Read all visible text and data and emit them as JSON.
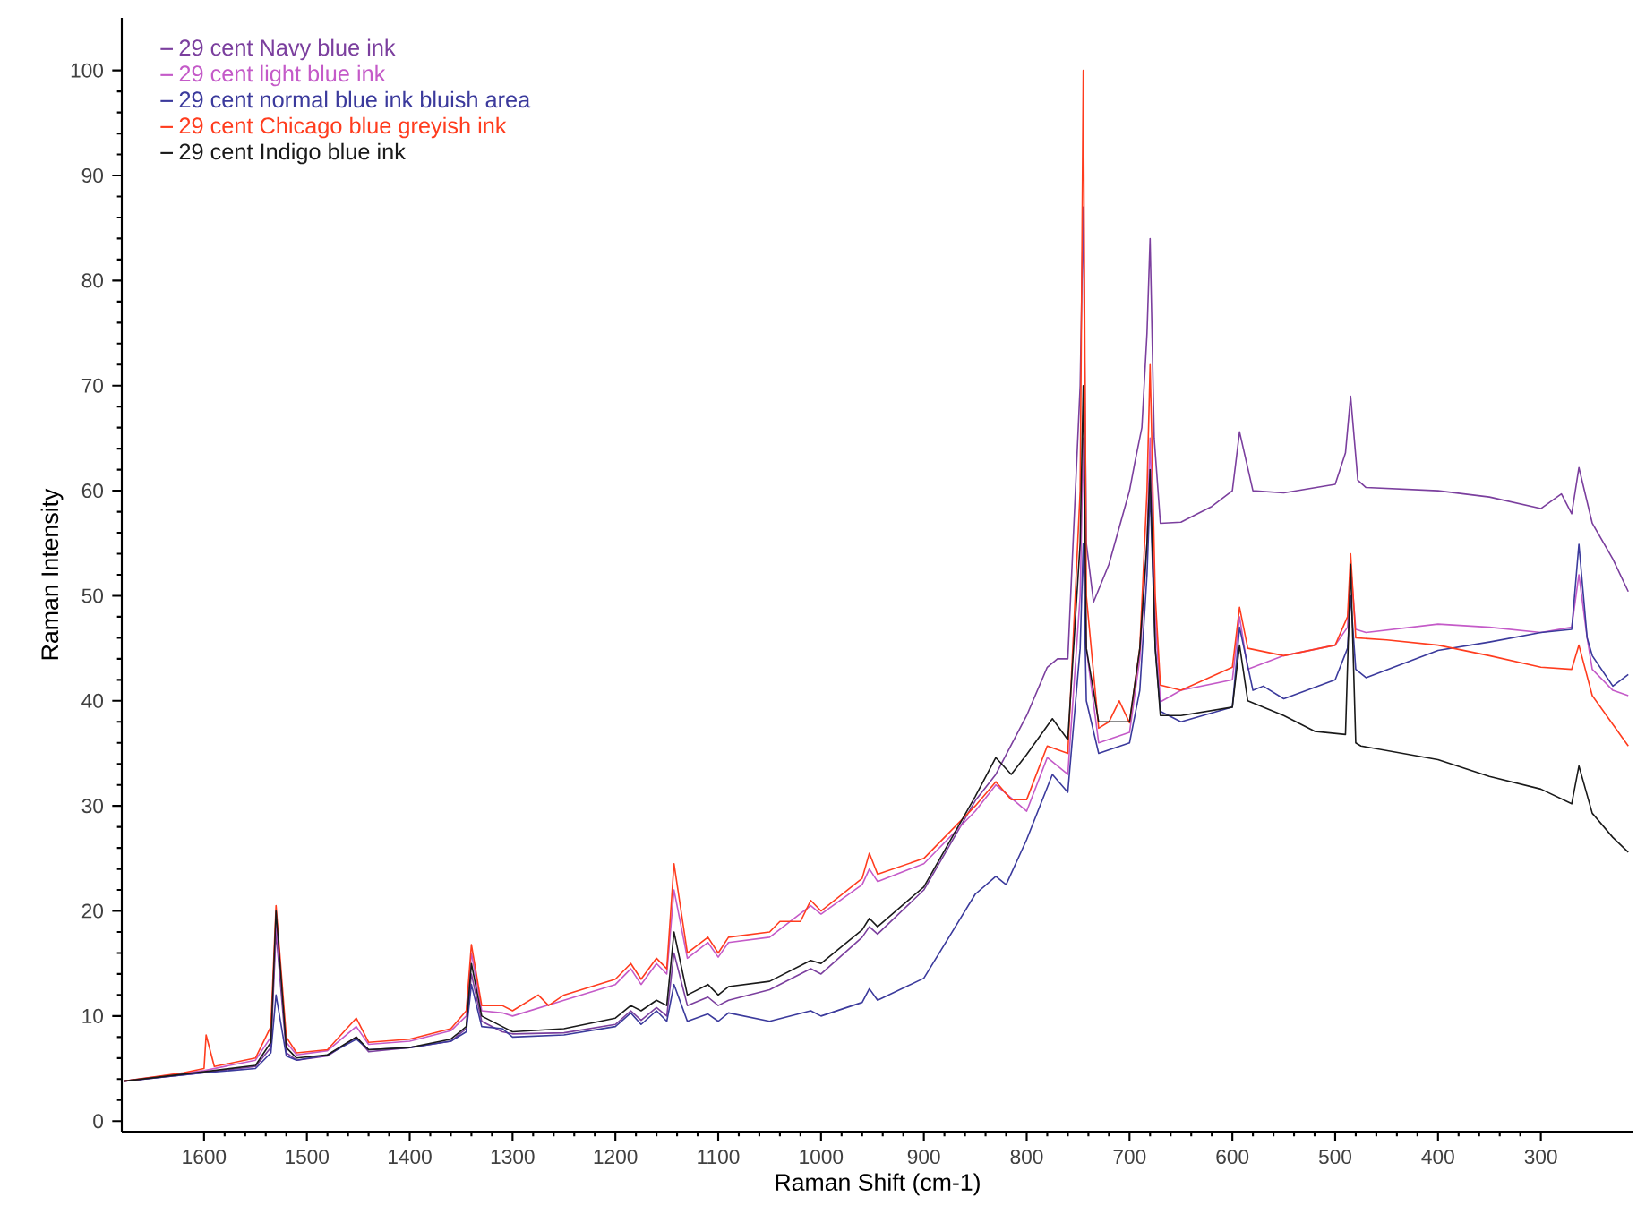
{
  "chart_data": {
    "type": "line",
    "xlabel": "Raman Shift (cm-1)",
    "ylabel": "Raman Intensity",
    "xlim": [
      1680,
      210
    ],
    "ylim": [
      -1,
      105
    ],
    "xticks": [
      1600,
      1500,
      1400,
      1300,
      1200,
      1100,
      1000,
      900,
      800,
      700,
      600,
      500,
      400,
      300
    ],
    "yticks": [
      0,
      10,
      20,
      30,
      40,
      50,
      60,
      70,
      80,
      90,
      100
    ],
    "grid": false,
    "legend": "top left",
    "marker": "none",
    "line_style": "solid",
    "series": [
      {
        "name": "29 cent Navy blue ink",
        "color": "#7b3f9e",
        "x": [
          1678,
          1600,
          1550,
          1535,
          1530,
          1520,
          1510,
          1480,
          1452,
          1440,
          1400,
          1360,
          1345,
          1340,
          1330,
          1310,
          1300,
          1250,
          1200,
          1185,
          1175,
          1160,
          1150,
          1143,
          1130,
          1110,
          1100,
          1090,
          1050,
          1010,
          1000,
          960,
          953,
          945,
          900,
          850,
          830,
          800,
          780,
          770,
          760,
          748,
          745,
          742,
          735,
          720,
          700,
          695,
          688,
          683,
          680,
          676,
          670,
          650,
          620,
          600,
          593,
          580,
          550,
          500,
          490,
          485,
          478,
          470,
          400,
          350,
          300,
          280,
          270,
          263,
          250,
          230,
          215
        ],
        "values": [
          3.8,
          4.6,
          5.2,
          7,
          18,
          6.5,
          5.8,
          6.2,
          8,
          6.6,
          7,
          7.6,
          8.8,
          14,
          9.5,
          8.5,
          8.3,
          8.4,
          9.2,
          10.5,
          9.6,
          10.8,
          10,
          16,
          11,
          11.8,
          11,
          11.5,
          12.5,
          14.5,
          14,
          17.5,
          18.5,
          17.8,
          22,
          30.5,
          33,
          38.6,
          43.2,
          44,
          44,
          70,
          87,
          55,
          49.4,
          53,
          60,
          62.6,
          66,
          75,
          84,
          65,
          56.9,
          57,
          58.5,
          60,
          65.6,
          60,
          59.8,
          60.6,
          63.6,
          69,
          61,
          60.3,
          60,
          59.4,
          58.3,
          59.7,
          57.8,
          62.2,
          56.9,
          53.5,
          50.4
        ]
      },
      {
        "name": "29 cent light blue ink",
        "color": "#c45ac8",
        "x": [
          1678,
          1600,
          1550,
          1535,
          1530,
          1520,
          1510,
          1480,
          1452,
          1440,
          1400,
          1360,
          1345,
          1340,
          1330,
          1310,
          1300,
          1250,
          1200,
          1185,
          1175,
          1160,
          1150,
          1143,
          1130,
          1110,
          1100,
          1090,
          1050,
          1010,
          1000,
          960,
          953,
          945,
          900,
          850,
          830,
          800,
          780,
          760,
          748,
          745,
          742,
          730,
          700,
          690,
          683,
          680,
          675,
          670,
          650,
          600,
          593,
          585,
          550,
          500,
          488,
          485,
          480,
          470,
          400,
          350,
          300,
          270,
          263,
          255,
          250,
          230,
          215
        ],
        "values": [
          3.8,
          4.8,
          5.8,
          8,
          19,
          7.5,
          6.3,
          6.7,
          9,
          7.3,
          7.6,
          8.6,
          10,
          16,
          10.5,
          10.3,
          10,
          11.5,
          13,
          14.5,
          13,
          15,
          14,
          22,
          15.5,
          17,
          15.6,
          17,
          17.5,
          20.5,
          19.7,
          22.5,
          24,
          22.8,
          24.5,
          29.5,
          32,
          29.5,
          34.6,
          33,
          50,
          65,
          45,
          36,
          37,
          44,
          55,
          65,
          48,
          39.9,
          41,
          42,
          48,
          43,
          44.3,
          45.3,
          47,
          53,
          46.8,
          46.5,
          47.3,
          47,
          46.5,
          47,
          52,
          46,
          43,
          41,
          40.5
        ]
      },
      {
        "name": "29 cent normal blue ink bluish area",
        "color": "#3b3a9c",
        "x": [
          1678,
          1600,
          1550,
          1535,
          1530,
          1520,
          1510,
          1480,
          1452,
          1440,
          1400,
          1360,
          1345,
          1340,
          1330,
          1310,
          1300,
          1250,
          1200,
          1185,
          1175,
          1160,
          1150,
          1143,
          1130,
          1110,
          1100,
          1090,
          1050,
          1010,
          1000,
          960,
          953,
          945,
          900,
          850,
          830,
          820,
          800,
          775,
          760,
          748,
          745,
          742,
          730,
          700,
          690,
          683,
          680,
          675,
          670,
          650,
          600,
          593,
          580,
          570,
          550,
          500,
          488,
          485,
          480,
          470,
          400,
          350,
          300,
          270,
          263,
          255,
          250,
          230,
          215
        ],
        "values": [
          3.8,
          4.6,
          5,
          6.5,
          12,
          6.2,
          5.8,
          6.3,
          7.8,
          6.8,
          7,
          7.6,
          8.5,
          13,
          9,
          8.8,
          8,
          8.2,
          9,
          10.3,
          9.2,
          10.5,
          9.5,
          13,
          9.5,
          10.2,
          9.5,
          10.3,
          9.5,
          10.5,
          10,
          11.3,
          12.6,
          11.5,
          13.6,
          21.6,
          23.3,
          22.5,
          26.8,
          33,
          31.3,
          45,
          55,
          40,
          35,
          36,
          41,
          52,
          60,
          45,
          39,
          38,
          39.4,
          47,
          41,
          41.4,
          40.2,
          42,
          45,
          50,
          43,
          42.2,
          44.8,
          45.6,
          46.5,
          46.8,
          54.9,
          46,
          44.3,
          41.4,
          42.5
        ]
      },
      {
        "name": "29 cent Chicago blue greyish ink",
        "color": "#ff3c1e",
        "x": [
          1678,
          1620,
          1600,
          1598,
          1590,
          1550,
          1535,
          1530,
          1520,
          1510,
          1480,
          1452,
          1440,
          1400,
          1360,
          1345,
          1340,
          1330,
          1310,
          1300,
          1275,
          1265,
          1250,
          1200,
          1185,
          1175,
          1160,
          1150,
          1143,
          1130,
          1110,
          1100,
          1090,
          1050,
          1040,
          1020,
          1010,
          1000,
          960,
          953,
          945,
          900,
          850,
          830,
          815,
          800,
          780,
          760,
          748,
          745,
          742,
          730,
          720,
          710,
          700,
          690,
          683,
          680,
          675,
          670,
          650,
          600,
          593,
          585,
          550,
          500,
          488,
          485,
          480,
          450,
          400,
          350,
          300,
          270,
          263,
          250,
          215
        ],
        "values": [
          3.8,
          4.6,
          5.0,
          8.2,
          5.2,
          6.0,
          9,
          20.5,
          8,
          6.5,
          6.8,
          9.8,
          7.5,
          7.8,
          8.8,
          10.5,
          16.8,
          11,
          11,
          10.5,
          12,
          11,
          12,
          13.5,
          15,
          13.5,
          15.5,
          14.5,
          24.5,
          16,
          17.5,
          16,
          17.5,
          18,
          19,
          19,
          21,
          20,
          23.1,
          25.5,
          23.5,
          25,
          30,
          32.3,
          30.6,
          30.6,
          35.7,
          35,
          60,
          100,
          50,
          37.4,
          38,
          40,
          37.9,
          45,
          60,
          72,
          50,
          41.5,
          41,
          43.2,
          48.9,
          45,
          44.3,
          45.3,
          48,
          54,
          46,
          45.8,
          45.3,
          44.3,
          43.2,
          43,
          45.3,
          40.5,
          35.7
        ]
      },
      {
        "name": "29 cent Indigo blue ink",
        "color": "#1a1a1a",
        "x": [
          1678,
          1600,
          1550,
          1535,
          1530,
          1520,
          1510,
          1480,
          1452,
          1440,
          1400,
          1360,
          1345,
          1340,
          1330,
          1310,
          1300,
          1250,
          1200,
          1185,
          1175,
          1160,
          1150,
          1143,
          1130,
          1110,
          1100,
          1090,
          1050,
          1010,
          1000,
          960,
          953,
          945,
          900,
          850,
          830,
          815,
          800,
          775,
          760,
          748,
          745,
          742,
          730,
          700,
          690,
          683,
          680,
          675,
          670,
          650,
          600,
          593,
          585,
          550,
          520,
          490,
          485,
          480,
          475,
          400,
          350,
          300,
          270,
          263,
          250,
          230,
          215
        ],
        "values": [
          3.8,
          4.7,
          5.3,
          7.5,
          20,
          7,
          6,
          6.3,
          8,
          6.8,
          7,
          7.8,
          9,
          15,
          10,
          9,
          8.5,
          8.8,
          9.8,
          11,
          10.5,
          11.5,
          11,
          18,
          12,
          13,
          12,
          12.8,
          13.3,
          15.3,
          15,
          18.2,
          19.3,
          18.5,
          22.3,
          30.9,
          34.6,
          33,
          34.9,
          38.3,
          36.3,
          55,
          70,
          45,
          38,
          38,
          45,
          55,
          62,
          45,
          38.6,
          38.6,
          39.4,
          45.3,
          40,
          38.6,
          37.1,
          36.8,
          53,
          36,
          35.7,
          34.4,
          32.8,
          31.6,
          30.2,
          33.8,
          29.3,
          27,
          25.6
        ]
      }
    ]
  }
}
